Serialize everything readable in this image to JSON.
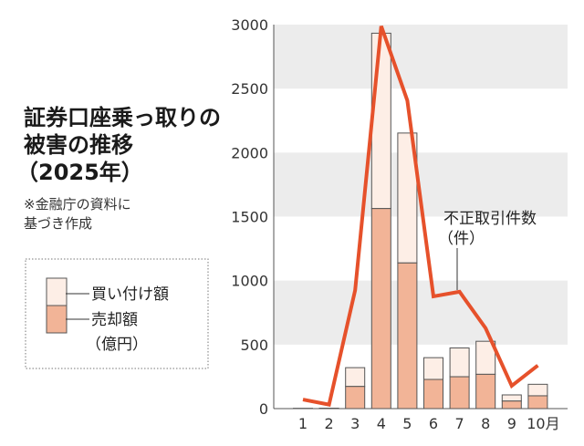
{
  "chart_data": {
    "type": "bar",
    "title_lines": [
      "証券口座乗っ取りの",
      "被害の推移",
      "（2025年）"
    ],
    "note_lines": [
      "※金融庁の資料に",
      "基づき作成"
    ],
    "categories": [
      "1",
      "2",
      "3",
      "4",
      "5",
      "6",
      "7",
      "8",
      "9",
      "10月"
    ],
    "ylim": [
      0,
      3000
    ],
    "yticks": [
      "0",
      "500",
      "1000",
      "1500",
      "2000",
      "2500",
      "3000"
    ],
    "grid": "alternating bands",
    "legend": {
      "entries": [
        "買い付け額",
        "売却額"
      ],
      "unit": "（億円）",
      "placement": "left"
    },
    "series": [
      {
        "name": "売却額",
        "kind": "stacked-bar",
        "color": "#f2b497",
        "values": [
          1,
          2,
          173,
          1563,
          1138,
          228,
          249,
          268,
          59,
          100
        ]
      },
      {
        "name": "買い付け額",
        "kind": "stacked-bar",
        "color": "#fdeee6",
        "values": [
          1,
          1,
          147,
          1370,
          1015,
          170,
          225,
          258,
          48,
          90
        ]
      },
      {
        "name": "不正取引件数",
        "unit": "（件）",
        "kind": "line",
        "color": "#e6512b",
        "values": [
          71,
          31,
          925,
          2988,
          2407,
          877,
          913,
          628,
          178,
          337
        ]
      }
    ]
  }
}
